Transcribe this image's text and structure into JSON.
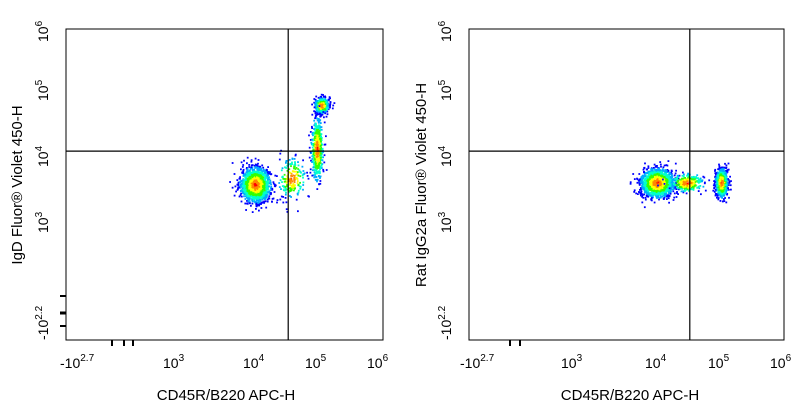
{
  "chart_data": [
    {
      "type": "scatter",
      "subtype": "flow-cytometry-density-plot",
      "title": "",
      "xlabel": "CD45R/B220 APC-H",
      "ylabel": "IgD Fluor® Violet 450-H",
      "xscale": "biexponential",
      "yscale": "biexponential",
      "xlim": [
        -501,
        1000000
      ],
      "ylim": [
        -158,
        1000000
      ],
      "x_ticks": [
        {
          "base": "-10",
          "exp": "2.7",
          "value": -501
        },
        {
          "base": "10",
          "exp": "3",
          "value": 1000
        },
        {
          "base": "10",
          "exp": "4",
          "value": 10000
        },
        {
          "base": "10",
          "exp": "5",
          "value": 100000
        },
        {
          "base": "10",
          "exp": "6",
          "value": 1000000
        }
      ],
      "y_ticks": [
        {
          "base": "-10",
          "exp": "2.2",
          "value": -158
        },
        {
          "base": "10",
          "exp": "3",
          "value": 1000
        },
        {
          "base": "10",
          "exp": "4",
          "value": 10000
        },
        {
          "base": "10",
          "exp": "5",
          "value": 100000
        },
        {
          "base": "10",
          "exp": "6",
          "value": 1000000
        }
      ],
      "gate": {
        "x": 2500,
        "y": 600
      },
      "populations": [
        {
          "x": 300,
          "y": 80,
          "sx": 0.2,
          "sy": 0.22,
          "n": 1500
        },
        {
          "x": 20000,
          "y": 10000,
          "sx": 0.09,
          "sy": 0.1,
          "n": 600
        },
        {
          "x": 15000,
          "y": 700,
          "sx": 0.08,
          "sy": 0.4,
          "n": 550
        },
        {
          "x": 3000,
          "y": 120,
          "sx": 0.18,
          "sy": 0.25,
          "n": 200
        }
      ],
      "grid": false
    },
    {
      "type": "scatter",
      "subtype": "flow-cytometry-density-plot",
      "title": "",
      "xlabel": "CD45R/B220 APC-H",
      "ylabel": "Rat IgG2a Fluor® Violet 450-H",
      "xscale": "biexponential",
      "yscale": "biexponential",
      "xlim": [
        -501,
        1000000
      ],
      "ylim": [
        -158,
        1000000
      ],
      "x_ticks": [
        {
          "base": "-10",
          "exp": "2.7",
          "value": -501
        },
        {
          "base": "10",
          "exp": "3",
          "value": 1000
        },
        {
          "base": "10",
          "exp": "4",
          "value": 10000
        },
        {
          "base": "10",
          "exp": "5",
          "value": 100000
        },
        {
          "base": "10",
          "exp": "6",
          "value": 1000000
        }
      ],
      "y_ticks": [
        {
          "base": "-10",
          "exp": "2.2",
          "value": -158
        },
        {
          "base": "10",
          "exp": "3",
          "value": 1000
        },
        {
          "base": "10",
          "exp": "4",
          "value": 10000
        },
        {
          "base": "10",
          "exp": "5",
          "value": 100000
        },
        {
          "base": "10",
          "exp": "6",
          "value": 1000000
        }
      ],
      "gate": {
        "x": 2500,
        "y": 600
      },
      "populations": [
        {
          "x": 300,
          "y": 90,
          "sx": 0.22,
          "sy": 0.18,
          "n": 1500
        },
        {
          "x": 18000,
          "y": 90,
          "sx": 0.08,
          "sy": 0.18,
          "n": 900
        },
        {
          "x": 2000,
          "y": 90,
          "sx": 0.22,
          "sy": 0.12,
          "n": 250
        }
      ],
      "grid": false
    }
  ],
  "colors": {
    "density_scale": [
      "#0000ff",
      "#00aaff",
      "#00ffcc",
      "#33ff00",
      "#ffff00",
      "#ff8800",
      "#ff0000"
    ],
    "axis": "#000000",
    "gate": "#000000"
  }
}
